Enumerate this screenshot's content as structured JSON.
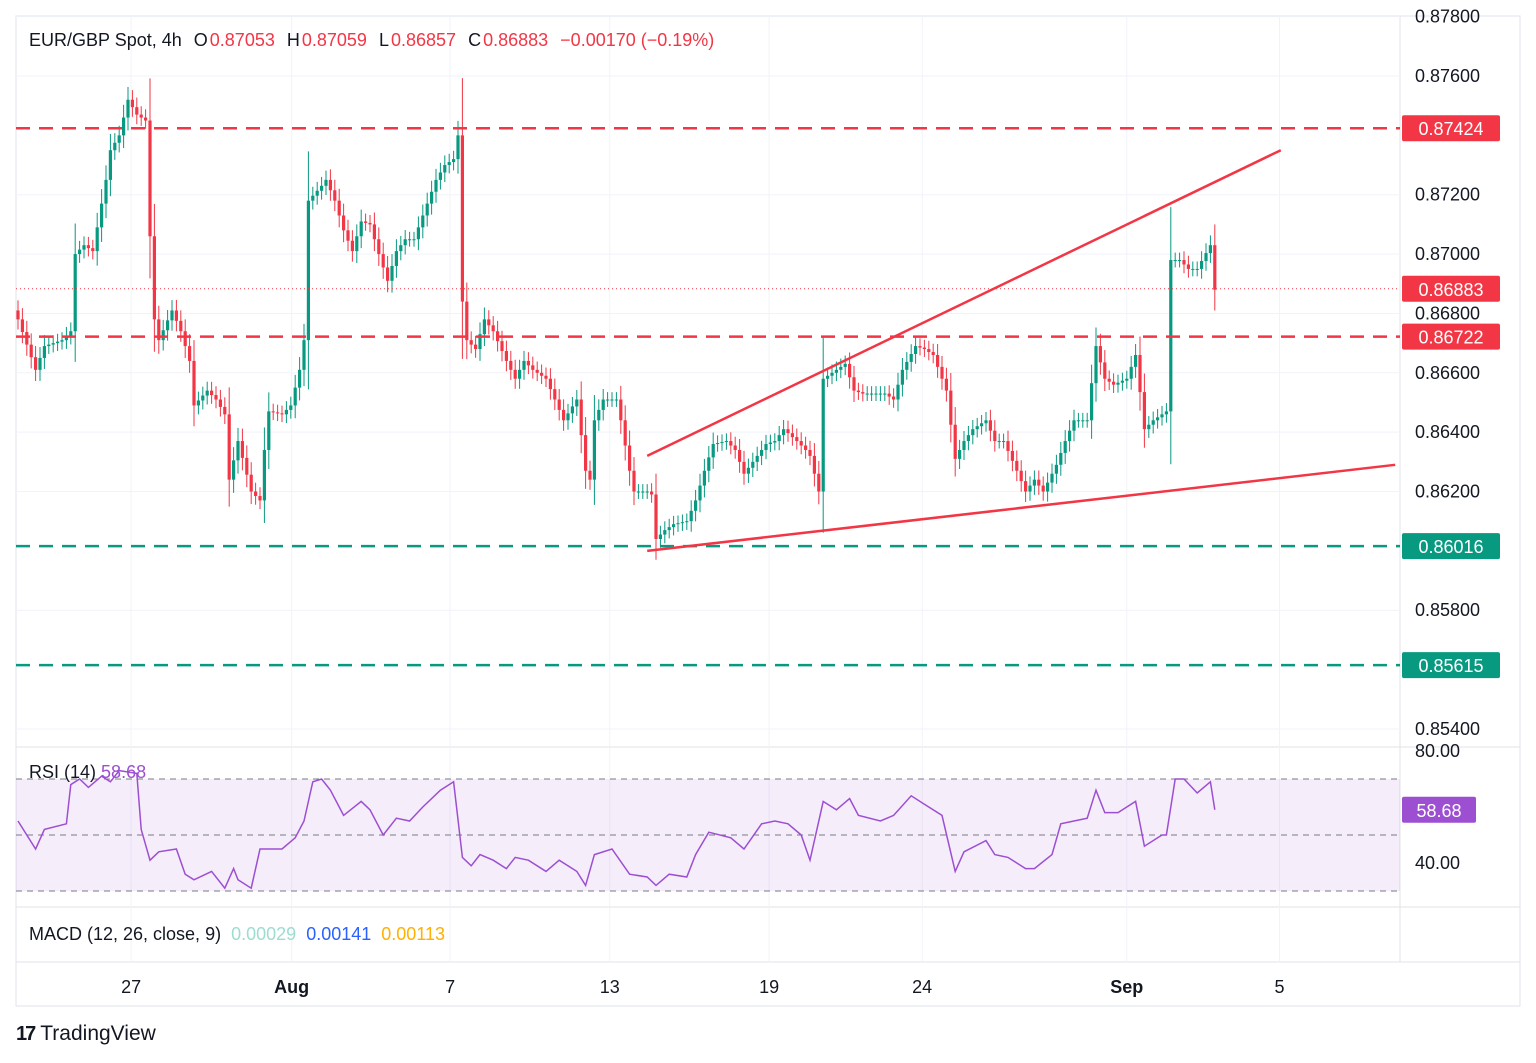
{
  "legend": {
    "symbol": "EUR/GBP Spot, 4h",
    "o_label": "O",
    "o": "0.87053",
    "h_label": "H",
    "h": "0.87059",
    "l_label": "L",
    "l": "0.86857",
    "c_label": "C",
    "c": "0.86883",
    "change": "−0.00170 (−0.19%)"
  },
  "rsi_legend": {
    "label": "RSI (14)",
    "value": "58.68"
  },
  "macd_legend": {
    "label": "MACD (12, 26, close, 9)",
    "hist": "0.00029",
    "macd": "0.00141",
    "signal": "0.00113"
  },
  "brand": "TradingView",
  "colors": {
    "up": "#089981",
    "down": "#f23645",
    "rsi": "#9c4fd1",
    "macd_hist": "#9fdcd0",
    "macd": "#2962ff",
    "signal": "#ffb000"
  },
  "chart_data": {
    "type": "candlestick",
    "title": "EUR/GBP Spot, 4h",
    "ylim": [
      0.8534,
      0.878
    ],
    "y_ticks": [
      "0.87800",
      "0.87600",
      "0.87200",
      "0.87000",
      "0.86800",
      "0.86600",
      "0.86400",
      "0.86200",
      "0.85800",
      "0.85400"
    ],
    "y_tick_values": [
      0.878,
      0.876,
      0.872,
      0.87,
      0.868,
      0.866,
      0.864,
      0.862,
      0.858,
      0.854
    ],
    "x_ticks": [
      {
        "label": "27",
        "bar": 25.7
      },
      {
        "label": "Aug",
        "bar": 62.2,
        "bold": true
      },
      {
        "label": "7",
        "bar": 98.2
      },
      {
        "label": "13",
        "bar": 134.5
      },
      {
        "label": "19",
        "bar": 170.7
      },
      {
        "label": "24",
        "bar": 205.5
      },
      {
        "label": "Sep",
        "bar": 252,
        "bold": true
      },
      {
        "label": "5",
        "bar": 286.7
      }
    ],
    "close_waypoints": [
      [
        0,
        0.8678
      ],
      [
        4,
        0.8661
      ],
      [
        6,
        0.8669
      ],
      [
        10,
        0.8671
      ],
      [
        12,
        0.8674
      ],
      [
        13,
        0.87
      ],
      [
        15,
        0.8703
      ],
      [
        17,
        0.8701
      ],
      [
        20,
        0.8725
      ],
      [
        21,
        0.8735
      ],
      [
        23,
        0.874
      ],
      [
        25,
        0.8752
      ],
      [
        27,
        0.8747
      ],
      [
        29,
        0.8745
      ],
      [
        30,
        0.8706
      ],
      [
        31,
        0.8678
      ],
      [
        32,
        0.8671
      ],
      [
        35,
        0.8681
      ],
      [
        37,
        0.8674
      ],
      [
        39,
        0.8664
      ],
      [
        40,
        0.8649
      ],
      [
        43,
        0.8654
      ],
      [
        45,
        0.8651
      ],
      [
        47,
        0.8646
      ],
      [
        48,
        0.8624
      ],
      [
        50,
        0.8637
      ],
      [
        53,
        0.862
      ],
      [
        55,
        0.8617
      ],
      [
        56,
        0.8634
      ],
      [
        57,
        0.8647
      ],
      [
        60,
        0.8646
      ],
      [
        62,
        0.8649
      ],
      [
        64,
        0.8661
      ],
      [
        65,
        0.8671
      ],
      [
        66,
        0.8718
      ],
      [
        69,
        0.8723
      ],
      [
        70,
        0.8725
      ],
      [
        72,
        0.8718
      ],
      [
        74,
        0.8708
      ],
      [
        76,
        0.8701
      ],
      [
        78,
        0.8711
      ],
      [
        80,
        0.871
      ],
      [
        82,
        0.87
      ],
      [
        84,
        0.8691
      ],
      [
        86,
        0.8701
      ],
      [
        88,
        0.8705
      ],
      [
        90,
        0.8705
      ],
      [
        92,
        0.8713
      ],
      [
        95,
        0.8725
      ],
      [
        97,
        0.873
      ],
      [
        99,
        0.8732
      ],
      [
        100,
        0.874
      ],
      [
        101,
        0.8684
      ],
      [
        102,
        0.8671
      ],
      [
        104,
        0.8668
      ],
      [
        106,
        0.8678
      ],
      [
        108,
        0.8674
      ],
      [
        111,
        0.8664
      ],
      [
        113,
        0.8658
      ],
      [
        115,
        0.8664
      ],
      [
        117,
        0.8661
      ],
      [
        120,
        0.8658
      ],
      [
        122,
        0.8651
      ],
      [
        124,
        0.8644
      ],
      [
        127,
        0.8651
      ],
      [
        129,
        0.8627
      ],
      [
        130,
        0.8624
      ],
      [
        131,
        0.8644
      ],
      [
        133,
        0.8651
      ],
      [
        136,
        0.8651
      ],
      [
        137,
        0.8644
      ],
      [
        139,
        0.8627
      ],
      [
        140,
        0.862
      ],
      [
        143,
        0.862
      ],
      [
        144,
        0.8619
      ],
      [
        145,
        0.8604
      ],
      [
        147,
        0.8607
      ],
      [
        149,
        0.8609
      ],
      [
        152,
        0.861
      ],
      [
        154,
        0.8617
      ],
      [
        156,
        0.8627
      ],
      [
        158,
        0.8636
      ],
      [
        161,
        0.8637
      ],
      [
        163,
        0.8634
      ],
      [
        165,
        0.8626
      ],
      [
        168,
        0.8632
      ],
      [
        170,
        0.8636
      ],
      [
        172,
        0.8637
      ],
      [
        174,
        0.8641
      ],
      [
        177,
        0.8637
      ],
      [
        179,
        0.8634
      ],
      [
        180,
        0.8632
      ],
      [
        182,
        0.862
      ],
      [
        183,
        0.8658
      ],
      [
        186,
        0.8661
      ],
      [
        188,
        0.8663
      ],
      [
        190,
        0.8654
      ],
      [
        192,
        0.8653
      ],
      [
        195,
        0.8653
      ],
      [
        197,
        0.8653
      ],
      [
        199,
        0.8651
      ],
      [
        201,
        0.8661
      ],
      [
        204,
        0.8669
      ],
      [
        206,
        0.8668
      ],
      [
        208,
        0.8666
      ],
      [
        211,
        0.8654
      ],
      [
        213,
        0.8631
      ],
      [
        215,
        0.8637
      ],
      [
        217,
        0.8641
      ],
      [
        220,
        0.8644
      ],
      [
        222,
        0.8637
      ],
      [
        224,
        0.8637
      ],
      [
        227,
        0.8627
      ],
      [
        229,
        0.862
      ],
      [
        231,
        0.8624
      ],
      [
        233,
        0.862
      ],
      [
        236,
        0.8629
      ],
      [
        238,
        0.8637
      ],
      [
        240,
        0.8644
      ],
      [
        243,
        0.8644
      ],
      [
        245,
        0.8669
      ],
      [
        247,
        0.8658
      ],
      [
        249,
        0.8656
      ],
      [
        252,
        0.8658
      ],
      [
        254,
        0.8666
      ],
      [
        256,
        0.8641
      ],
      [
        258,
        0.8644
      ],
      [
        261,
        0.8647
      ],
      [
        262,
        0.8698
      ],
      [
        264,
        0.8698
      ],
      [
        266,
        0.8695
      ],
      [
        268,
        0.8695
      ],
      [
        271,
        0.8703
      ],
      [
        272,
        0.8688
      ]
    ],
    "levels": [
      {
        "value": 0.87424,
        "label": "0.87424",
        "color": "#f23645"
      },
      {
        "value": 0.86722,
        "label": "0.86722",
        "color": "#f23645"
      },
      {
        "value": 0.86016,
        "label": "0.86016",
        "color": "#089981"
      },
      {
        "value": 0.85615,
        "label": "0.85615",
        "color": "#089981"
      }
    ],
    "current_price": {
      "value": 0.86883,
      "label": "0.86883"
    },
    "trendlines": [
      {
        "from": [
          143,
          0.8632
        ],
        "to": [
          287,
          0.8735
        ]
      },
      {
        "from": [
          143,
          0.86
        ],
        "to": [
          313,
          0.8629
        ]
      }
    ],
    "rsi": {
      "ylim": [
        25,
        85
      ],
      "bands": [
        70,
        50,
        30
      ],
      "y_ticks": [
        "80.00",
        "40.00"
      ],
      "y_tick_values": [
        80,
        40
      ],
      "current": "58.68",
      "points": [
        [
          0,
          55
        ],
        [
          4,
          45
        ],
        [
          6,
          52
        ],
        [
          11,
          54
        ],
        [
          12,
          68
        ],
        [
          14,
          70
        ],
        [
          16,
          67
        ],
        [
          19,
          71
        ],
        [
          21,
          69
        ],
        [
          23,
          73
        ],
        [
          27,
          72
        ],
        [
          28,
          52
        ],
        [
          30,
          41
        ],
        [
          32,
          44
        ],
        [
          36,
          45
        ],
        [
          38,
          36
        ],
        [
          40,
          34
        ],
        [
          44,
          37
        ],
        [
          47,
          31
        ],
        [
          49,
          38
        ],
        [
          50,
          34
        ],
        [
          53,
          31
        ],
        [
          55,
          45
        ],
        [
          60,
          45
        ],
        [
          63,
          49
        ],
        [
          65,
          55
        ],
        [
          67,
          69
        ],
        [
          69,
          70
        ],
        [
          71,
          66
        ],
        [
          74,
          57
        ],
        [
          78,
          62
        ],
        [
          80,
          59
        ],
        [
          83,
          50
        ],
        [
          86,
          56
        ],
        [
          89,
          55
        ],
        [
          92,
          60
        ],
        [
          96,
          66
        ],
        [
          99,
          69
        ],
        [
          101,
          42
        ],
        [
          103,
          39
        ],
        [
          105,
          43
        ],
        [
          108,
          41
        ],
        [
          111,
          38
        ],
        [
          113,
          42
        ],
        [
          116,
          41
        ],
        [
          120,
          37
        ],
        [
          123,
          41
        ],
        [
          127,
          37
        ],
        [
          129,
          32
        ],
        [
          131,
          43
        ],
        [
          135,
          45
        ],
        [
          139,
          36
        ],
        [
          143,
          35
        ],
        [
          145,
          32
        ],
        [
          148,
          36
        ],
        [
          152,
          35
        ],
        [
          154,
          43
        ],
        [
          157,
          51
        ],
        [
          162,
          49
        ],
        [
          165,
          45
        ],
        [
          169,
          54
        ],
        [
          172,
          55
        ],
        [
          175,
          54
        ],
        [
          178,
          50
        ],
        [
          180,
          41
        ],
        [
          183,
          62
        ],
        [
          186,
          59
        ],
        [
          189,
          63
        ],
        [
          191,
          57
        ],
        [
          196,
          55
        ],
        [
          199,
          57
        ],
        [
          203,
          64
        ],
        [
          206,
          61
        ],
        [
          210,
          57
        ],
        [
          213,
          37
        ],
        [
          215,
          44
        ],
        [
          220,
          48
        ],
        [
          222,
          43
        ],
        [
          225,
          42
        ],
        [
          229,
          38
        ],
        [
          231,
          38
        ],
        [
          235,
          43
        ],
        [
          237,
          54
        ],
        [
          240,
          55
        ],
        [
          243,
          56
        ],
        [
          245,
          66
        ],
        [
          247,
          58
        ],
        [
          250,
          58
        ],
        [
          254,
          62
        ],
        [
          256,
          46
        ],
        [
          260,
          50
        ],
        [
          261,
          50
        ],
        [
          263,
          70
        ],
        [
          265,
          70
        ],
        [
          268,
          65
        ],
        [
          271,
          69
        ],
        [
          272,
          59
        ]
      ]
    }
  }
}
